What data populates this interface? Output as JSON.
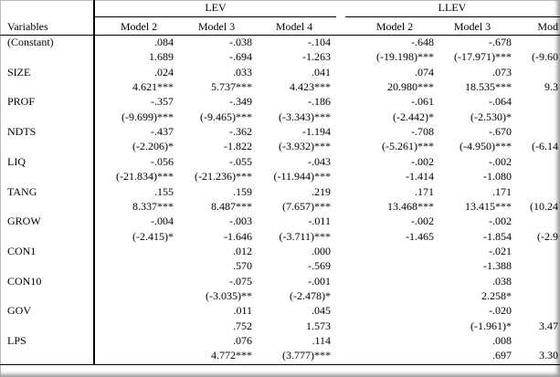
{
  "table": {
    "groups": [
      "LEV",
      "LLEV"
    ],
    "header": [
      "Variables",
      "Model 2",
      "Model 3",
      "Model 4",
      "Model 2",
      "Model 3",
      "Mod"
    ],
    "rows": [
      [
        "(Constant)",
        ".084",
        "-.038",
        "-.104",
        "-.648",
        "-.678",
        null
      ],
      [
        null,
        "1.689",
        "-.694",
        "-1.263",
        "(-19.198)***",
        "(-17.971)***",
        "(-9.60"
      ],
      [
        "SIZE",
        ".024",
        ".033",
        ".041",
        ".074",
        ".073",
        null
      ],
      [
        null,
        "4.621***",
        "5.737***",
        "4.423***",
        "20.980***",
        "18.535***",
        "9.3"
      ],
      [
        "PROF",
        "-.357",
        "-.349",
        "-.186",
        "-.061",
        "-.064",
        null
      ],
      [
        null,
        "(-9.699)***",
        "(-9.465)***",
        "(-3.343)***",
        "(-2.442)*",
        "(-2.530)*",
        null
      ],
      [
        "NDTS",
        "-.437",
        "-.362",
        "-1.194",
        "-.708",
        "-.670",
        null
      ],
      [
        null,
        "(-2.206)*",
        "-1.822",
        "(-3.932)***",
        "(-5.261)***",
        "(-4.950)***",
        "(-6.14"
      ],
      [
        "LIQ",
        "-.056",
        "-.055",
        "-.043",
        "-.002",
        "-.002",
        null
      ],
      [
        null,
        "(-21.834)***",
        "(-21.236)***",
        "(-11.944)***",
        "-1.414",
        "-1.080",
        null
      ],
      [
        "TANG",
        ".155",
        ".159",
        ".219",
        ".171",
        ".171",
        null
      ],
      [
        null,
        "8.337***",
        "8.487***",
        "(7.657)***",
        "13.468***",
        "13.415***",
        "(10.24"
      ],
      [
        "GROW",
        "-.004",
        "-.003",
        "-.011",
        "-.002",
        "-.002",
        null
      ],
      [
        null,
        "(-2.415)*",
        "-1.646",
        "(-3.711)***",
        "-1.465",
        "-1.854",
        "(-2.9"
      ],
      [
        "CON1",
        null,
        ".012",
        ".000",
        null,
        "-.021",
        null
      ],
      [
        null,
        null,
        ".570",
        "-.569",
        null,
        "-1.388",
        null
      ],
      [
        "CON10",
        null,
        "-.075",
        "-.001",
        null,
        ".038",
        null
      ],
      [
        null,
        null,
        "(-3.035)**",
        "(-2.478)*",
        null,
        "2.258*",
        null
      ],
      [
        "GOV",
        null,
        ".011",
        ".045",
        null,
        "-.020",
        null
      ],
      [
        null,
        null,
        ".752",
        "1.573",
        null,
        "(-1.961)*",
        "3.47"
      ],
      [
        "LPS",
        null,
        ".076",
        ".114",
        null,
        ".008",
        null
      ],
      [
        null,
        null,
        "4.772***",
        "(3.777)***",
        null,
        ".697",
        "3.30"
      ]
    ]
  }
}
